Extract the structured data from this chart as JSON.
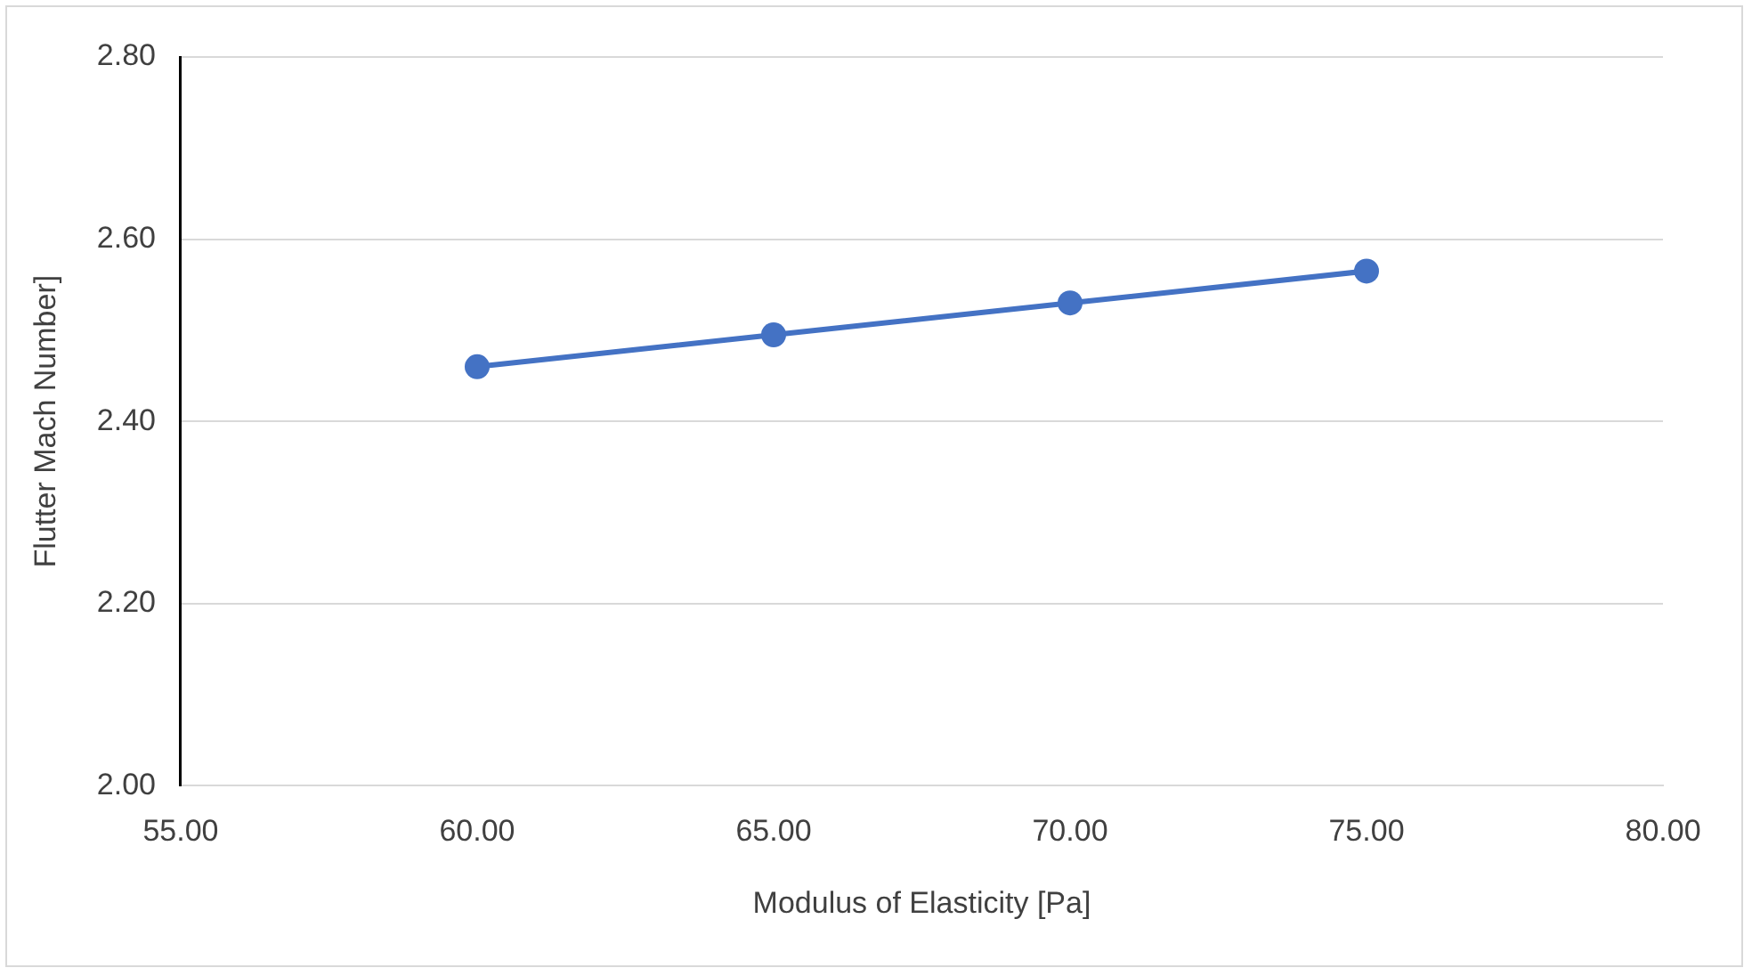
{
  "chart_data": {
    "type": "line",
    "xlabel": "Modulus of Elasticity [Pa]",
    "ylabel": "Flutter Mach Number]",
    "x": [
      60,
      65,
      70,
      75
    ],
    "series": [
      {
        "color": "#4472c4",
        "values": [
          2.46,
          2.495,
          2.53,
          2.565
        ]
      }
    ],
    "xlim": [
      55,
      80
    ],
    "xticks": [
      {
        "value": 55,
        "label": "55.00"
      },
      {
        "value": 60,
        "label": "60.00"
      },
      {
        "value": 65,
        "label": "65.00"
      },
      {
        "value": 70,
        "label": "70.00"
      },
      {
        "value": 75,
        "label": "75.00"
      },
      {
        "value": 80,
        "label": "80.00"
      }
    ],
    "ylim": [
      2,
      2.8
    ],
    "yticks": [
      {
        "value": 2,
        "label": "2.00"
      },
      {
        "value": 2.2,
        "label": "2.20"
      },
      {
        "value": 2.4,
        "label": "2.40"
      },
      {
        "value": 2.6,
        "label": "2.60"
      },
      {
        "value": 2.8,
        "label": "2.80"
      }
    ],
    "grid": "y",
    "legend": false,
    "marker": "circle",
    "line_style": "solid"
  }
}
